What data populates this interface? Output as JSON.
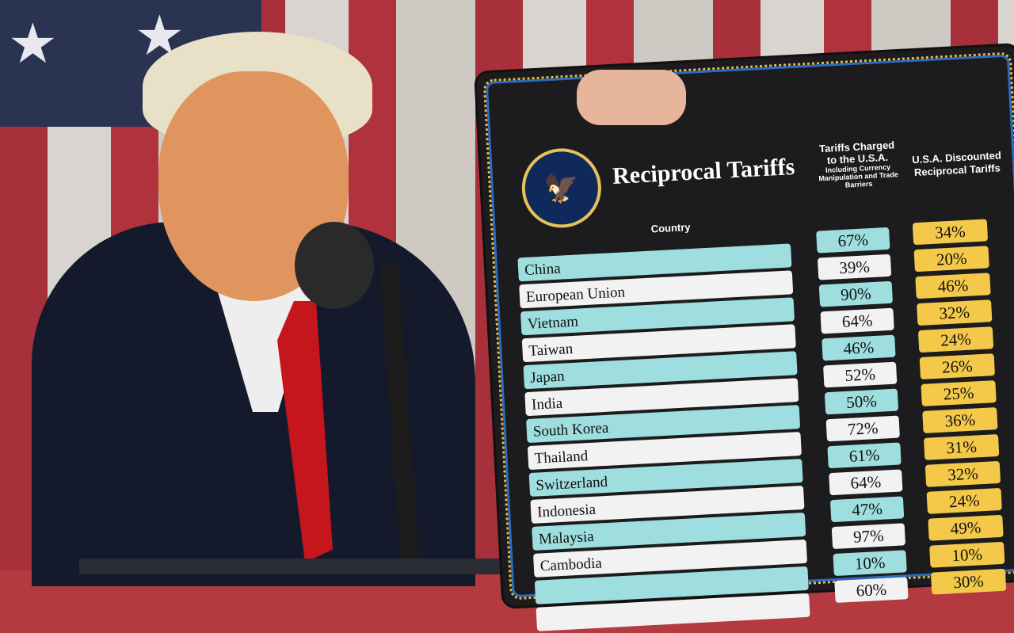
{
  "board": {
    "title": "Reciprocal Tariffs",
    "country_header": "Country",
    "charged_header": "Tariffs Charged to the U.S.A.",
    "charged_subheader": "Including Currency Manipulation and Trade Barriers",
    "discounted_header": "U.S.A. Discounted Reciprocal Tariffs",
    "rows": [
      {
        "country": "China",
        "charged": "67%",
        "reciprocal": "34%"
      },
      {
        "country": "European Union",
        "charged": "39%",
        "reciprocal": "20%"
      },
      {
        "country": "Vietnam",
        "charged": "90%",
        "reciprocal": "46%"
      },
      {
        "country": "Taiwan",
        "charged": "64%",
        "reciprocal": "32%"
      },
      {
        "country": "Japan",
        "charged": "46%",
        "reciprocal": "24%"
      },
      {
        "country": "India",
        "charged": "52%",
        "reciprocal": "26%"
      },
      {
        "country": "South Korea",
        "charged": "50%",
        "reciprocal": "25%"
      },
      {
        "country": "Thailand",
        "charged": "72%",
        "reciprocal": "36%"
      },
      {
        "country": "Switzerland",
        "charged": "61%",
        "reciprocal": "31%"
      },
      {
        "country": "Indonesia",
        "charged": "64%",
        "reciprocal": "32%"
      },
      {
        "country": "Malaysia",
        "charged": "47%",
        "reciprocal": "24%"
      },
      {
        "country": "Cambodia",
        "charged": "97%",
        "reciprocal": "49%"
      },
      {
        "country": "",
        "charged": "10%",
        "reciprocal": "10%"
      },
      {
        "country": "",
        "charged": "60%",
        "reciprocal": "30%"
      }
    ]
  },
  "colors": {
    "teal": "#9fdede",
    "gold": "#f4c94a",
    "board": "#1c1c1e"
  }
}
